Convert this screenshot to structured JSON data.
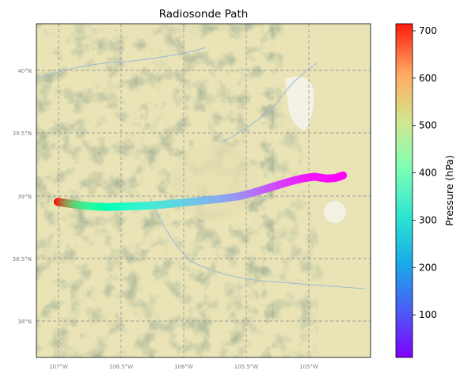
{
  "chart_data": {
    "type": "scatter",
    "title": "Radiosonde Path",
    "xlabel": "",
    "ylabel": "",
    "xlim": [
      -107.17,
      -104.5
    ],
    "ylim": [
      37.73,
      40.37
    ],
    "grid": true,
    "x_ticks": [
      {
        "value": -107.0,
        "label": "107°W"
      },
      {
        "value": -106.5,
        "label": "106.5°W"
      },
      {
        "value": -106.0,
        "label": "106°W"
      },
      {
        "value": -105.5,
        "label": "105.5°W"
      },
      {
        "value": -105.0,
        "label": "105°W"
      }
    ],
    "y_ticks": [
      {
        "value": 38.0,
        "label": "38°N"
      },
      {
        "value": 38.5,
        "label": "38.5°N"
      },
      {
        "value": 39.0,
        "label": "39°N"
      },
      {
        "value": 39.5,
        "label": "39.5°N"
      },
      {
        "value": 40.0,
        "label": "40°N"
      }
    ],
    "colorbar": {
      "label": "Pressure (hPa)",
      "range": [
        10,
        715
      ],
      "colormap": "rainbow",
      "ticks": [
        100,
        200,
        300,
        400,
        500,
        600,
        700
      ]
    },
    "series": [
      {
        "columns": [
          "lon",
          "lat",
          "pressure_hPa"
        ],
        "points": [
          [
            -107.0,
            38.96,
            710
          ],
          [
            -106.96,
            38.955,
            640
          ],
          [
            -106.9,
            38.945,
            560
          ],
          [
            -106.82,
            38.935,
            480
          ],
          [
            -106.72,
            38.925,
            420
          ],
          [
            -106.6,
            38.92,
            370
          ],
          [
            -106.45,
            38.925,
            320
          ],
          [
            -106.3,
            38.93,
            285
          ],
          [
            -106.15,
            38.94,
            255
          ],
          [
            -106.0,
            38.955,
            225
          ],
          [
            -105.85,
            38.97,
            200
          ],
          [
            -105.7,
            38.985,
            175
          ],
          [
            -105.55,
            39.005,
            150
          ],
          [
            -105.45,
            39.03,
            125
          ],
          [
            -105.35,
            39.06,
            100
          ],
          [
            -105.25,
            39.09,
            78
          ],
          [
            -105.15,
            39.12,
            58
          ],
          [
            -105.05,
            39.145,
            42
          ],
          [
            -104.95,
            39.16,
            30
          ],
          [
            -104.85,
            39.145,
            22
          ],
          [
            -104.78,
            39.15,
            16
          ],
          [
            -104.72,
            39.17,
            12
          ]
        ]
      }
    ]
  },
  "colors": {
    "grid": "#9a9a9a",
    "terrain_plains": "#e9e3b6",
    "terrain_mountain": "#8f9f7a",
    "urban": "#f4f2ee"
  }
}
